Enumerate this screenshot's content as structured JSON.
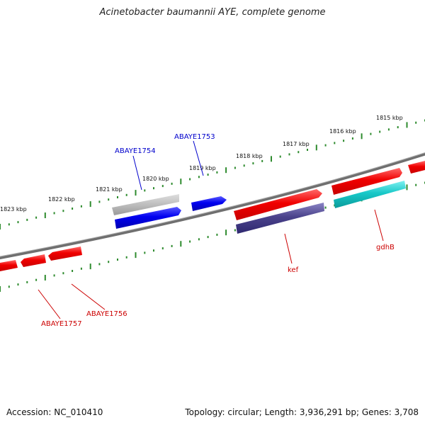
{
  "title": "Acinetobacter baumannii AYE, complete genome",
  "accession": "Accession: NC_010410",
  "topology": "Topology: circular; Length: 3,936,291 bp; Genes: 3,708",
  "colors": {
    "backbone": "#7a7a7a",
    "tick": "#2e8b2e",
    "label_blue": "#0000cc",
    "label_red": "#cc0000"
  },
  "tick_labels": [
    "1815 kbp",
    "1816 kbp",
    "1817 kbp",
    "1818 kbp",
    "1819 kbp",
    "1820 kbp",
    "1821 kbp",
    "1822 kbp",
    "1823 kbp"
  ],
  "gene_labels": {
    "abaye1754": "ABAYE1754",
    "abaye1753": "ABAYE1753",
    "kef": "kef",
    "gdhb": "gdhB",
    "abaye1756": "ABAYE1756",
    "abaye1757": "ABAYE1757"
  },
  "features": [
    {
      "name": "feature-gray-upper",
      "color": "gray",
      "strand": "reverse"
    },
    {
      "name": "feature-blue-abaye1754",
      "color": "blue",
      "strand": "forward"
    },
    {
      "name": "feature-blue-abaye1753",
      "color": "blue",
      "strand": "forward"
    },
    {
      "name": "feature-red-upper-1",
      "color": "red",
      "strand": "forward"
    },
    {
      "name": "feature-navy-kef",
      "color": "navy",
      "strand": "forward"
    },
    {
      "name": "feature-red-upper-2",
      "color": "red",
      "strand": "forward"
    },
    {
      "name": "feature-cyan-gdhb",
      "color": "cyan",
      "strand": "forward"
    },
    {
      "name": "feature-red-upper-3",
      "color": "red",
      "strand": "forward"
    },
    {
      "name": "feature-red-lower-1",
      "color": "red",
      "strand": "reverse"
    },
    {
      "name": "feature-red-lower-2",
      "color": "red",
      "strand": "reverse"
    },
    {
      "name": "feature-red-lower-3",
      "color": "red",
      "strand": "reverse"
    }
  ]
}
